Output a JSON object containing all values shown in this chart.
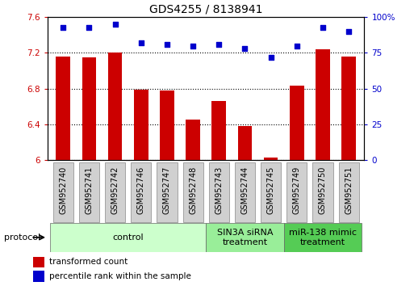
{
  "title": "GDS4255 / 8138941",
  "samples": [
    "GSM952740",
    "GSM952741",
    "GSM952742",
    "GSM952746",
    "GSM952747",
    "GSM952748",
    "GSM952743",
    "GSM952744",
    "GSM952745",
    "GSM952749",
    "GSM952750",
    "GSM952751"
  ],
  "bar_values": [
    7.16,
    7.15,
    7.2,
    6.79,
    6.78,
    6.45,
    6.66,
    6.38,
    6.03,
    6.83,
    7.24,
    7.16
  ],
  "dot_values": [
    93,
    93,
    95,
    82,
    81,
    80,
    81,
    78,
    72,
    80,
    93,
    90
  ],
  "bar_color": "#cc0000",
  "dot_color": "#0000cc",
  "ylim_left": [
    6.0,
    7.6
  ],
  "ylim_right": [
    0,
    100
  ],
  "yticks_left": [
    6.0,
    6.4,
    6.8,
    7.2,
    7.6
  ],
  "ytick_labels_left": [
    "6",
    "6.4",
    "6.8",
    "7.2",
    "7.6"
  ],
  "yticks_right": [
    0,
    25,
    50,
    75,
    100
  ],
  "ytick_labels_right": [
    "0",
    "25",
    "50",
    "75",
    "100%"
  ],
  "groups": [
    {
      "label": "control",
      "start": 0,
      "end": 6,
      "color": "#ccffcc"
    },
    {
      "label": "SIN3A siRNA\ntreatment",
      "start": 6,
      "end": 9,
      "color": "#99ee99"
    },
    {
      "label": "miR-138 mimic\ntreatment",
      "start": 9,
      "end": 12,
      "color": "#55cc55"
    }
  ],
  "protocol_label": "protocol",
  "legend_items": [
    {
      "color": "#cc0000",
      "label": "transformed count"
    },
    {
      "color": "#0000cc",
      "label": "percentile rank within the sample"
    }
  ],
  "bar_width": 0.55,
  "title_fontsize": 10,
  "tick_fontsize": 7.5,
  "sample_fontsize": 7,
  "group_fontsize": 8
}
